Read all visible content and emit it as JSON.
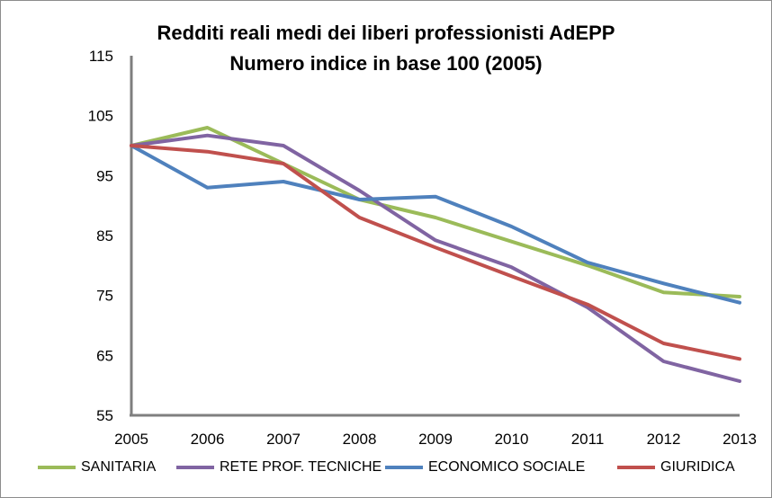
{
  "chart_data": {
    "type": "line",
    "title": "Redditi reali medi dei liberi professionisti AdEPP",
    "subtitle": "Numero indice in base 100 (2005)",
    "xlabel": "",
    "ylabel": "",
    "x": [
      "2005",
      "2006",
      "2007",
      "2008",
      "2009",
      "2010",
      "2011",
      "2012",
      "2013"
    ],
    "ylim": [
      55,
      115
    ],
    "yticks": [
      55,
      65,
      75,
      85,
      95,
      105,
      115
    ],
    "grid": false,
    "legend_position": "bottom",
    "series": [
      {
        "name": "SANITARIA",
        "color": "#9bbb59",
        "values": [
          100,
          103,
          97,
          91,
          88,
          84,
          80,
          75.5,
          74.8
        ]
      },
      {
        "name": "RETE PROF. TECNICHE",
        "color": "#8064a2",
        "values": [
          100,
          101.7,
          100,
          92.5,
          84.2,
          79.7,
          73,
          64,
          60.7
        ]
      },
      {
        "name": "ECONOMICO SOCIALE",
        "color": "#4f81bd",
        "values": [
          100,
          93,
          94,
          91,
          91.5,
          86.5,
          80.5,
          77,
          73.8
        ]
      },
      {
        "name": "GIURIDICA",
        "color": "#c0504d",
        "values": [
          100,
          99,
          97,
          88,
          83,
          78.2,
          73.5,
          67,
          64.4
        ]
      }
    ]
  }
}
